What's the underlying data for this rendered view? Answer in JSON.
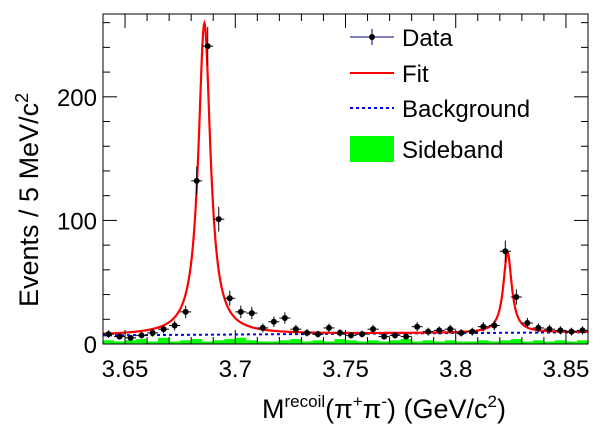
{
  "chart_data": {
    "type": "line",
    "title": "",
    "xlabel": {
      "base": "M",
      "sup": "recoil",
      "pre": "(π",
      "plus": "+",
      "pi2": "π",
      "minus": "-",
      "post": ") (GeV/c",
      "unitexp": "2",
      "close": ")"
    },
    "ylabel": {
      "text": "Events / 5 MeV/c",
      "exp": "2"
    },
    "xlim": [
      3.64,
      3.86
    ],
    "ylim": [
      0,
      267
    ],
    "xticks": [
      3.65,
      3.7,
      3.75,
      3.8,
      3.85
    ],
    "xtick_labels": [
      "3.65",
      "3.7",
      "3.75",
      "3.8",
      "3.85"
    ],
    "yticks": [
      0,
      100,
      200
    ],
    "ytick_labels": [
      "0",
      "100",
      "200"
    ],
    "legend": {
      "position": "top-right",
      "entries": [
        {
          "label": "Data",
          "style": "marker",
          "color": "#000080"
        },
        {
          "label": "Fit",
          "style": "line",
          "color": "#ff0000"
        },
        {
          "label": "Background",
          "style": "dashed",
          "color": "#0000ff"
        },
        {
          "label": "Sideband",
          "style": "fill",
          "color": "#00ff00"
        }
      ]
    },
    "data": {
      "name": "Data",
      "x": [
        3.6425,
        3.6475,
        3.6525,
        3.6575,
        3.6625,
        3.6675,
        3.6725,
        3.6775,
        3.6825,
        3.6875,
        3.6925,
        3.6975,
        3.7025,
        3.7075,
        3.7125,
        3.7175,
        3.7225,
        3.7275,
        3.7325,
        3.7375,
        3.7425,
        3.7475,
        3.7525,
        3.7575,
        3.7625,
        3.7675,
        3.7725,
        3.7775,
        3.7825,
        3.7875,
        3.7925,
        3.7975,
        3.8025,
        3.8075,
        3.8125,
        3.8175,
        3.8225,
        3.8275,
        3.8325,
        3.8375,
        3.8425,
        3.8475,
        3.8525,
        3.8575
      ],
      "y": [
        8,
        6,
        5,
        7,
        9,
        12,
        15,
        26,
        132,
        241,
        101,
        37,
        26,
        25,
        13,
        18,
        21,
        12,
        9,
        8,
        13,
        9,
        7,
        8,
        12,
        6,
        7,
        6,
        14,
        10,
        11,
        12,
        9,
        10,
        14,
        15,
        75,
        38,
        17,
        13,
        12,
        11,
        10,
        11
      ],
      "xerr": 0.0025,
      "yerr": [
        3,
        2.5,
        2.2,
        2.6,
        3,
        3.5,
        3.9,
        5.1,
        11.5,
        15.5,
        10,
        6.1,
        5.1,
        5,
        3.6,
        4.2,
        4.6,
        3.5,
        3,
        2.8,
        3.6,
        3,
        2.6,
        2.8,
        3.5,
        2.4,
        2.6,
        2.4,
        3.7,
        3.2,
        3.3,
        3.5,
        3,
        3.2,
        3.7,
        3.9,
        8.7,
        6.2,
        4.1,
        3.6,
        3.5,
        3.3,
        3.2,
        3.3
      ]
    },
    "fit": {
      "name": "Fit",
      "background_level": 8,
      "peaks": [
        {
          "center": 3.686,
          "amplitude": 252,
          "width": 0.0033
        },
        {
          "center": 3.8235,
          "amplitude": 65,
          "width": 0.0023
        }
      ]
    },
    "background": {
      "name": "Background",
      "x": [
        3.64,
        3.86
      ],
      "y": [
        7,
        9.5
      ]
    },
    "sideband": {
      "name": "Sideband",
      "x": [
        3.6425,
        3.6475,
        3.6525,
        3.6575,
        3.6625,
        3.6675,
        3.6725,
        3.6775,
        3.6825,
        3.6875,
        3.6925,
        3.6975,
        3.7025,
        3.7075,
        3.7125,
        3.7175,
        3.7225,
        3.7275,
        3.7325,
        3.7375,
        3.7425,
        3.7475,
        3.7525,
        3.7575,
        3.7625,
        3.7675,
        3.7725,
        3.7775,
        3.7825,
        3.7875,
        3.7925,
        3.7975,
        3.8025,
        3.8075,
        3.8125,
        3.8175,
        3.8225,
        3.8275,
        3.8325,
        3.8375,
        3.8425,
        3.8475,
        3.8525,
        3.8575
      ],
      "y": [
        3,
        2,
        3,
        4,
        2,
        5,
        2,
        3,
        4,
        2,
        3,
        4,
        5,
        3,
        2,
        2,
        3,
        4,
        2,
        3,
        2,
        4,
        3,
        2,
        3,
        2,
        3,
        4,
        2,
        3,
        2,
        3,
        2,
        2,
        3,
        2,
        3,
        4,
        2,
        3,
        2,
        3,
        2,
        3
      ]
    }
  }
}
